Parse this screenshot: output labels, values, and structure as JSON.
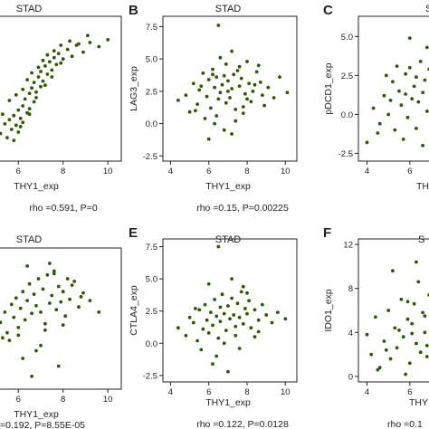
{
  "chart_data": [
    {
      "panel": "",
      "type": "scatter",
      "title": "STAD",
      "xlabel": "THY1_exp",
      "ylabel": "",
      "x_ticks": [
        "6",
        "8",
        "10"
      ],
      "y_ticks": [],
      "xlim": [
        5.1,
        10.6
      ],
      "ylim": [
        -2.5,
        8.0
      ],
      "rho_text": "rho =0.591, P=0",
      "marker_color": "#2d5a00",
      "series": [
        {
          "x": [
            5.2,
            5.4,
            5.5,
            5.6,
            5.7,
            5.8,
            5.9,
            6.0,
            6.0,
            6.1,
            6.2,
            6.2,
            6.3,
            6.4,
            6.5,
            6.5,
            6.6,
            6.7,
            6.7,
            6.8,
            6.9,
            7.0,
            7.0,
            7.1,
            7.2,
            7.3,
            7.4,
            7.5,
            7.6,
            7.7,
            7.8,
            8.0,
            8.2,
            8.4,
            8.6,
            8.9,
            9.2,
            9.6,
            10.0,
            5.3,
            5.6,
            5.9,
            6.2,
            6.4,
            6.6,
            6.9,
            7.1,
            7.3,
            7.6,
            7.9,
            8.3,
            8.7,
            9.1,
            5.8,
            6.1,
            6.5,
            6.8,
            7.2,
            7.5,
            7.9
          ],
          "y": [
            -0.5,
            0.2,
            -0.8,
            0.5,
            -0.2,
            0.8,
            0.1,
            1.2,
            -0.4,
            0.6,
            1.5,
            0.3,
            2.0,
            1.0,
            2.4,
            0.9,
            2.8,
            1.8,
            3.2,
            2.5,
            3.6,
            2.9,
            4.0,
            3.3,
            4.4,
            3.8,
            4.7,
            4.1,
            5.0,
            4.5,
            5.3,
            4.9,
            5.6,
            5.1,
            5.9,
            5.4,
            6.1,
            5.8,
            6.3,
            0.9,
            1.9,
            2.3,
            2.7,
            3.4,
            3.9,
            4.3,
            4.8,
            5.2,
            5.5,
            5.9,
            6.2,
            6.0,
            6.6,
            -1.0,
            0.0,
            1.3,
            2.1,
            3.0,
            3.6,
            4.6
          ]
        }
      ]
    },
    {
      "panel": "B",
      "type": "scatter",
      "title": "STAD",
      "xlabel": "THY1_exp",
      "ylabel": "LAG3_exp",
      "x_ticks": [
        "4",
        "6",
        "8",
        "10"
      ],
      "y_ticks": [
        "-2.5",
        "0.0",
        "2.5",
        "5.0",
        "7.5"
      ],
      "xlim": [
        3.6,
        10.6
      ],
      "ylim": [
        -2.9,
        8.3
      ],
      "rho_text": "rho =0.15, P=0.00225",
      "marker_color": "#2d5a00",
      "series": [
        {
          "x": [
            4.4,
            4.8,
            5.0,
            5.2,
            5.4,
            5.5,
            5.7,
            5.8,
            5.9,
            6.0,
            6.1,
            6.2,
            6.3,
            6.3,
            6.4,
            6.5,
            6.6,
            6.6,
            6.7,
            6.8,
            6.9,
            6.9,
            7.0,
            7.1,
            7.2,
            7.2,
            7.3,
            7.4,
            7.5,
            7.6,
            7.7,
            7.8,
            7.9,
            8.0,
            8.1,
            8.2,
            8.3,
            8.5,
            8.7,
            8.9,
            9.1,
            9.4,
            9.7,
            10.1,
            5.6,
            6.0,
            6.4,
            6.8,
            7.2,
            7.6,
            8.0,
            8.4,
            8.8,
            5.3,
            6.2,
            7.0,
            7.8,
            6.5,
            7.4,
            8.6
          ],
          "y": [
            1.8,
            2.2,
            0.9,
            3.1,
            1.5,
            2.6,
            3.9,
            0.4,
            2.1,
            3.4,
            1.2,
            4.2,
            2.8,
            0.0,
            3.6,
            1.9,
            5.1,
            2.4,
            3.0,
            -0.5,
            4.6,
            1.6,
            3.3,
            2.0,
            5.6,
            2.7,
            3.8,
            1.1,
            4.1,
            2.9,
            3.5,
            0.8,
            2.3,
            4.8,
            3.1,
            1.7,
            2.5,
            4.0,
            3.2,
            1.4,
            2.8,
            2.0,
            3.6,
            2.4,
            2.9,
            -1.2,
            0.6,
            3.7,
            -0.8,
            4.4,
            1.9,
            3.0,
            2.2,
            1.0,
            3.8,
            2.5,
            1.3,
            7.6,
            0.2,
            4.5
          ]
        }
      ]
    },
    {
      "panel": "C",
      "type": "scatter",
      "title": "S",
      "xlabel": "TH",
      "ylabel": "pDCD1_exp",
      "x_ticks": [
        "4",
        "6"
      ],
      "y_ticks": [
        "-2.5",
        "0.0",
        "2.5",
        "5.0"
      ],
      "xlim": [
        3.6,
        7.4
      ],
      "ylim": [
        -3.0,
        6.3
      ],
      "rho_text": "",
      "marker_color": "#2d5a00",
      "series": [
        {
          "x": [
            4.0,
            4.3,
            4.6,
            4.8,
            5.0,
            5.2,
            5.3,
            5.5,
            5.6,
            5.8,
            5.9,
            6.0,
            6.1,
            6.2,
            6.3,
            6.4,
            6.5,
            6.6,
            6.7,
            6.8,
            6.9,
            7.0,
            7.1,
            7.2,
            4.5,
            5.1,
            5.7,
            6.3,
            6.8,
            5.4,
            6.0,
            6.6,
            7.0,
            4.9,
            5.8
          ],
          "y": [
            -1.8,
            0.4,
            -0.6,
            1.2,
            0.0,
            2.1,
            -1.0,
            1.5,
            0.6,
            2.6,
            -0.2,
            3.0,
            1.0,
            1.8,
            2.4,
            0.8,
            3.4,
            1.4,
            2.2,
            0.2,
            2.9,
            1.6,
            3.6,
            2.0,
            -1.2,
            0.9,
            -1.6,
            -0.9,
            4.3,
            3.1,
            4.9,
            -2.0,
            0.5,
            2.5,
            1.3
          ]
        }
      ]
    },
    {
      "panel": "",
      "type": "scatter",
      "title": "STAD",
      "xlabel": "THY1_exp",
      "ylabel": "",
      "x_ticks": [
        "6",
        "8",
        "10"
      ],
      "y_ticks": [],
      "xlim": [
        5.1,
        10.6
      ],
      "ylim": [
        -3.0,
        8.0
      ],
      "rho_text": "=0.192, P=8.55E-05",
      "marker_color": "#2d5a00",
      "series": [
        {
          "x": [
            5.2,
            5.4,
            5.5,
            5.7,
            5.8,
            5.9,
            6.0,
            6.1,
            6.2,
            6.3,
            6.4,
            6.5,
            6.6,
            6.7,
            6.8,
            6.9,
            7.0,
            7.1,
            7.2,
            7.3,
            7.4,
            7.5,
            7.6,
            7.7,
            7.8,
            7.9,
            8.0,
            8.1,
            8.3,
            8.5,
            8.7,
            8.9,
            9.2,
            9.6,
            5.6,
            6.0,
            6.4,
            6.8,
            7.2,
            7.6,
            8.0,
            8.4,
            8.8,
            5.3,
            6.2,
            7.0,
            7.8,
            6.6,
            7.4,
            8.2
          ],
          "y": [
            2.2,
            3.0,
            1.4,
            3.6,
            2.6,
            4.1,
            1.8,
            3.3,
            4.6,
            2.4,
            3.9,
            5.2,
            2.9,
            4.4,
            3.5,
            5.6,
            3.0,
            4.8,
            2.1,
            5.9,
            3.7,
            4.3,
            6.2,
            3.2,
            5.0,
            3.8,
            4.6,
            2.7,
            4.0,
            5.4,
            3.4,
            4.5,
            3.9,
            3.0,
            0.8,
            1.2,
            6.6,
            0.0,
            1.6,
            6.0,
            2.0,
            5.1,
            4.2,
            1.0,
            -0.6,
            0.4,
            -1.2,
            -2.0,
            6.8,
            5.6
          ]
        }
      ]
    },
    {
      "panel": "E",
      "type": "scatter",
      "title": "STAD",
      "xlabel": "THY1_exp",
      "ylabel": "CTLA4_exp",
      "x_ticks": [
        "4",
        "6",
        "8",
        "10"
      ],
      "y_ticks": [
        "-2.5",
        "0.0",
        "2.5",
        "5.0",
        "7.5"
      ],
      "xlim": [
        3.6,
        10.6
      ],
      "ylim": [
        -3.0,
        8.1
      ],
      "rho_text": "rho =0.122, P=0.0128",
      "marker_color": "#2d5a00",
      "series": [
        {
          "x": [
            4.4,
            4.8,
            5.0,
            5.2,
            5.4,
            5.5,
            5.7,
            5.8,
            5.9,
            6.0,
            6.1,
            6.2,
            6.3,
            6.4,
            6.5,
            6.6,
            6.6,
            6.7,
            6.8,
            6.9,
            7.0,
            7.1,
            7.2,
            7.3,
            7.4,
            7.5,
            7.6,
            7.7,
            7.8,
            7.9,
            8.0,
            8.1,
            8.2,
            8.4,
            8.6,
            8.8,
            9.0,
            9.3,
            9.6,
            10.0,
            5.6,
            6.0,
            6.4,
            6.8,
            7.2,
            7.6,
            8.0,
            8.4,
            5.3,
            6.2,
            7.0,
            7.8,
            6.5,
            7.4,
            8.6
          ],
          "y": [
            1.2,
            0.6,
            2.0,
            1.6,
            0.2,
            2.6,
            1.1,
            3.0,
            1.8,
            0.8,
            2.4,
            1.4,
            3.4,
            2.1,
            0.4,
            2.8,
            1.7,
            3.8,
            2.3,
            1.0,
            2.9,
            1.9,
            3.5,
            2.2,
            0.6,
            3.1,
            2.0,
            4.0,
            1.5,
            2.7,
            2.3,
            3.3,
            1.2,
            2.6,
            1.8,
            3.0,
            2.2,
            1.6,
            2.4,
            1.9,
            -0.5,
            4.6,
            -1.0,
            0.0,
            5.0,
            -0.4,
            3.9,
            0.5,
            2.7,
            -1.6,
            -2.2,
            4.4,
            7.5,
            1.3,
            0.9
          ]
        }
      ]
    },
    {
      "panel": "F",
      "type": "scatter",
      "title": "S",
      "xlabel": "THY",
      "ylabel": "IDO1_exp",
      "x_ticks": [
        "4",
        "6"
      ],
      "y_ticks": [
        "0",
        "4",
        "8",
        "12"
      ],
      "xlim": [
        3.6,
        7.4
      ],
      "ylim": [
        -0.5,
        12.5
      ],
      "rho_text": "rho =0.1",
      "marker_color": "#2d5a00",
      "series": [
        {
          "x": [
            4.0,
            4.2,
            4.4,
            4.6,
            4.8,
            5.0,
            5.1,
            5.3,
            5.4,
            5.6,
            5.7,
            5.9,
            6.0,
            6.1,
            6.2,
            6.3,
            6.4,
            6.5,
            6.6,
            6.7,
            6.8,
            6.9,
            7.0,
            7.1,
            7.2,
            4.5,
            5.2,
            5.8,
            6.3,
            6.8,
            5.5,
            6.1,
            6.7,
            4.9,
            5.9
          ],
          "y": [
            3.8,
            2.0,
            5.4,
            0.8,
            3.2,
            6.0,
            1.6,
            4.4,
            2.6,
            7.0,
            3.6,
            5.2,
            1.2,
            4.8,
            6.6,
            3.0,
            8.6,
            2.2,
            5.8,
            4.0,
            1.8,
            7.4,
            3.4,
            6.2,
            4.6,
            0.6,
            9.6,
            0.2,
            10.4,
            2.8,
            4.2,
            3.9,
            5.5,
            2.4,
            6.8
          ]
        }
      ]
    }
  ]
}
